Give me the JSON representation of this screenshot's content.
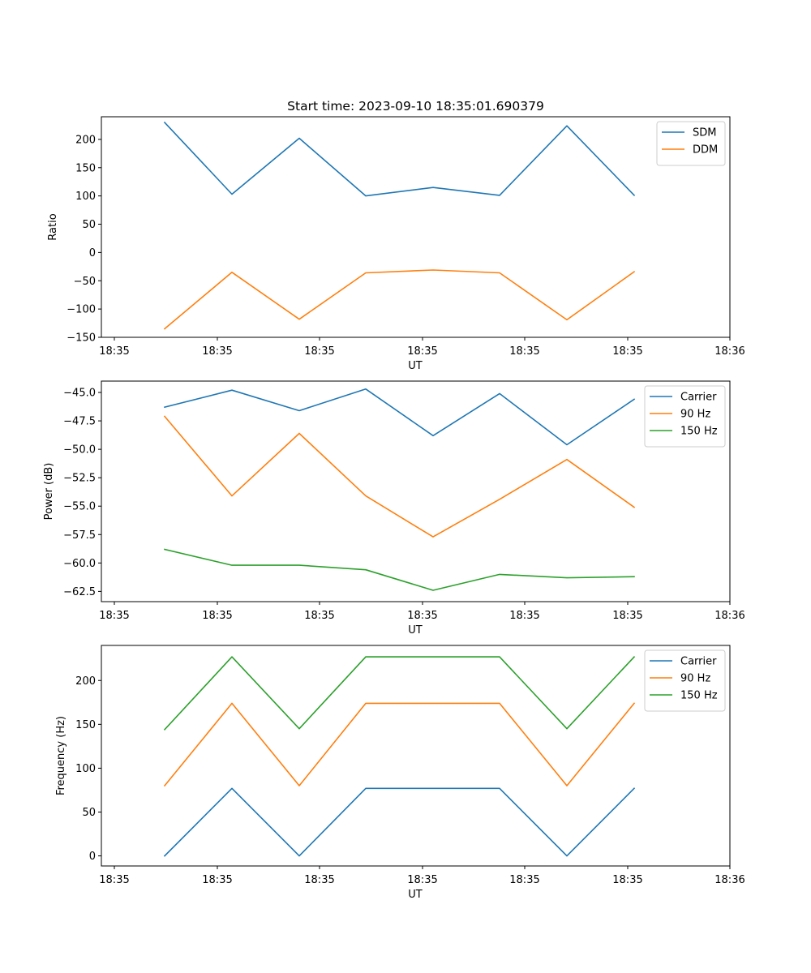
{
  "chart_data": [
    {
      "type": "line",
      "title": "Start time: 2023-09-10 18:35:01.690379",
      "xlabel": "UT",
      "ylabel": "Ratio",
      "x_tick_labels": [
        "18:35",
        "18:35",
        "18:35",
        "18:35",
        "18:35",
        "18:35",
        "18:36"
      ],
      "y_ticks": [
        -150,
        -100,
        -50,
        0,
        50,
        100,
        150,
        200
      ],
      "y_tick_labels": [
        "−150",
        "−100",
        "−50",
        "0",
        "50",
        "100",
        "150",
        "200"
      ],
      "ylim": [
        -150,
        240
      ],
      "legend_position": "top-right",
      "series": [
        {
          "name": "SDM",
          "color": "#1f77b4",
          "values": [
            230,
            103,
            202,
            100,
            115,
            101,
            224,
            101
          ]
        },
        {
          "name": "DDM",
          "color": "#ff7f0e",
          "values": [
            -135,
            -35,
            -118,
            -36,
            -31,
            -36,
            -119,
            -34
          ]
        }
      ]
    },
    {
      "type": "line",
      "title": "",
      "xlabel": "UT",
      "ylabel": "Power (dB)",
      "x_tick_labels": [
        "18:35",
        "18:35",
        "18:35",
        "18:35",
        "18:35",
        "18:35",
        "18:36"
      ],
      "y_ticks": [
        -62.5,
        -60,
        -57.5,
        -55,
        -52.5,
        -50,
        -47.5,
        -45
      ],
      "y_tick_labels": [
        "−62.5",
        "−60.0",
        "−57.5",
        "−55.0",
        "−52.5",
        "−50.0",
        "−47.5",
        "−45.0"
      ],
      "ylim": [
        -63.4,
        -44.0
      ],
      "legend_position": "top-right",
      "series": [
        {
          "name": "Carrier",
          "color": "#1f77b4",
          "values": [
            -46.3,
            -44.8,
            -46.6,
            -44.7,
            -48.8,
            -45.1,
            -49.6,
            -45.6
          ]
        },
        {
          "name": "90 Hz",
          "color": "#ff7f0e",
          "values": [
            -47.1,
            -54.1,
            -48.6,
            -54.1,
            -57.7,
            -54.4,
            -50.9,
            -55.1
          ]
        },
        {
          "name": "150 Hz",
          "color": "#2ca02c",
          "values": [
            -58.8,
            -60.2,
            -60.2,
            -60.6,
            -62.4,
            -61.0,
            -61.3,
            -61.2
          ]
        }
      ]
    },
    {
      "type": "line",
      "title": "",
      "xlabel": "UT",
      "ylabel": "Frequency (Hz)",
      "x_tick_labels": [
        "18:35",
        "18:35",
        "18:35",
        "18:35",
        "18:35",
        "18:35",
        "18:36"
      ],
      "y_ticks": [
        0,
        50,
        100,
        150,
        200
      ],
      "y_tick_labels": [
        "0",
        "50",
        "100",
        "150",
        "200"
      ],
      "ylim": [
        -11.5,
        240
      ],
      "legend_position": "top-right",
      "series": [
        {
          "name": "Carrier",
          "color": "#1f77b4",
          "values": [
            0,
            77,
            0,
            77,
            77,
            77,
            0,
            77
          ]
        },
        {
          "name": "90 Hz",
          "color": "#ff7f0e",
          "values": [
            80,
            174,
            80,
            174,
            174,
            174,
            80,
            174
          ]
        },
        {
          "name": "150 Hz",
          "color": "#2ca02c",
          "values": [
            144,
            227,
            145,
            227,
            227,
            227,
            145,
            227
          ]
        }
      ]
    }
  ]
}
